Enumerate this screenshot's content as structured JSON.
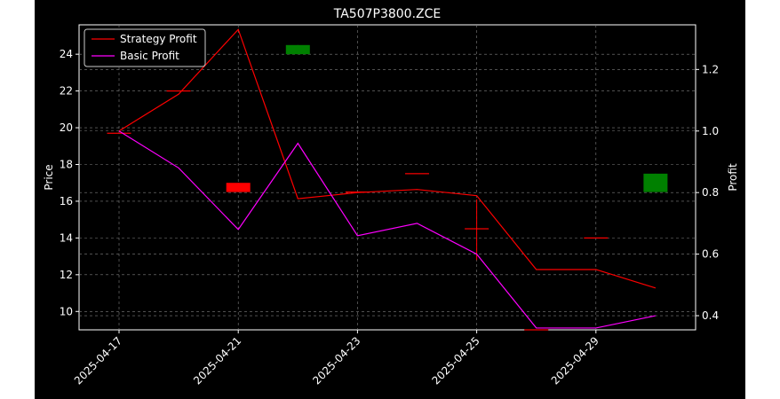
{
  "chart_data": {
    "type": "candlestick+line",
    "title": "TA507P3800.ZCE",
    "ylabel_left": "Price",
    "ylabel_right": "Profit",
    "ylim_left": [
      9.0,
      25.6
    ],
    "ylim_right": [
      0.354,
      1.345
    ],
    "yticks_left": [
      10,
      12,
      14,
      16,
      18,
      20,
      22,
      24
    ],
    "yticks_right": [
      0.4,
      0.6,
      0.8,
      1.0,
      1.2
    ],
    "yticklabels_left": [
      "10",
      "12",
      "14",
      "16",
      "18",
      "20",
      "22",
      "24"
    ],
    "yticklabels_right": [
      "0.4",
      "0.6",
      "0.8",
      "1.0",
      "1.2"
    ],
    "x_dates": [
      "2025-04-17",
      "2025-04-18",
      "2025-04-21",
      "2025-04-22",
      "2025-04-23",
      "2025-04-24",
      "2025-04-25",
      "2025-04-28",
      "2025-04-29",
      "2025-04-30"
    ],
    "xtick_labels": [
      "2025-04-17",
      "2025-04-21",
      "2025-04-23",
      "2025-04-25",
      "2025-04-29"
    ],
    "xtick_index": [
      0,
      2,
      4,
      6,
      8
    ],
    "grid": true,
    "legend_position": "upper-left",
    "candles": [
      {
        "date": "2025-04-17",
        "open": 19.7,
        "close": 19.7,
        "high": 19.7,
        "low": 19.7,
        "color": "#ff0000"
      },
      {
        "date": "2025-04-18",
        "open": 22.0,
        "close": 22.0,
        "high": 22.0,
        "low": 22.0,
        "color": "#ff0000"
      },
      {
        "date": "2025-04-21",
        "open": 17.0,
        "close": 16.5,
        "high": 17.0,
        "low": 16.5,
        "color": "#ff0000"
      },
      {
        "date": "2025-04-22",
        "open": 24.0,
        "close": 24.5,
        "high": 24.5,
        "low": 24.0,
        "color": "#008000"
      },
      {
        "date": "2025-04-23",
        "open": 16.5,
        "close": 16.5,
        "high": 16.5,
        "low": 16.5,
        "color": "#ff0000"
      },
      {
        "date": "2025-04-24",
        "open": 17.5,
        "close": 17.5,
        "high": 17.5,
        "low": 17.5,
        "color": "#ff0000"
      },
      {
        "date": "2025-04-25",
        "open": 14.5,
        "close": 14.5,
        "high": 16.1,
        "low": 12.8,
        "color": "#ff0000"
      },
      {
        "date": "2025-04-28",
        "open": 9.0,
        "close": 9.0,
        "high": 9.0,
        "low": 9.0,
        "color": "#ff0000"
      },
      {
        "date": "2025-04-29",
        "open": 14.0,
        "close": 14.0,
        "high": 14.0,
        "low": 14.0,
        "color": "#ff0000"
      },
      {
        "date": "2025-04-30",
        "open": 16.5,
        "close": 17.5,
        "high": 17.5,
        "low": 16.5,
        "color": "#008000"
      }
    ],
    "series": [
      {
        "name": "Strategy Profit",
        "color": "#ff0000",
        "axis": "right",
        "values": [
          1.0,
          1.12,
          1.33,
          0.78,
          0.8,
          0.81,
          0.79,
          0.55,
          0.55,
          0.49
        ]
      },
      {
        "name": "Basic Profit",
        "color": "#ff00ff",
        "axis": "right",
        "values": [
          1.0,
          0.88,
          0.68,
          0.96,
          0.66,
          0.7,
          0.6,
          0.36,
          0.36,
          0.4
        ]
      }
    ]
  }
}
